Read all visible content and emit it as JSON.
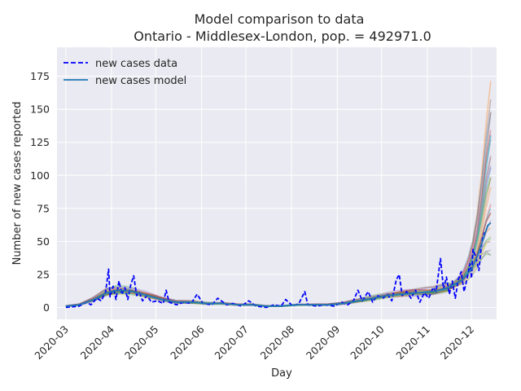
{
  "chart_data": {
    "type": "line",
    "title": "Model comparison to data",
    "subtitle": "Ontario - Middlesex-London, pop. = 492971.0",
    "xlabel": "Day",
    "ylabel": "Number of new cases reported",
    "xlim": [
      "2020-02-24",
      "2020-12-18"
    ],
    "ylim": [
      -9,
      197
    ],
    "grid": true,
    "legend_position": "top-left",
    "x_tick_labels": [
      "2020-03",
      "2020-04",
      "2020-05",
      "2020-06",
      "2020-07",
      "2020-08",
      "2020-09",
      "2020-10",
      "2020-11",
      "2020-12"
    ],
    "y_ticks": [
      0,
      25,
      50,
      75,
      100,
      125,
      150,
      175
    ],
    "series": [
      {
        "name": "new cases data",
        "style": "dashed",
        "color": "#0000ff",
        "points": [
          [
            "2020-03-01",
            0
          ],
          [
            "2020-03-10",
            1
          ],
          [
            "2020-03-15",
            4
          ],
          [
            "2020-03-18",
            2
          ],
          [
            "2020-03-22",
            7
          ],
          [
            "2020-03-25",
            5
          ],
          [
            "2020-03-28",
            12
          ],
          [
            "2020-03-30",
            29
          ],
          [
            "2020-03-31",
            8
          ],
          [
            "2020-04-02",
            16
          ],
          [
            "2020-04-04",
            6
          ],
          [
            "2020-04-06",
            20
          ],
          [
            "2020-04-08",
            10
          ],
          [
            "2020-04-10",
            15
          ],
          [
            "2020-04-12",
            6
          ],
          [
            "2020-04-14",
            17
          ],
          [
            "2020-04-16",
            24
          ],
          [
            "2020-04-18",
            9
          ],
          [
            "2020-04-20",
            11
          ],
          [
            "2020-04-22",
            5
          ],
          [
            "2020-04-25",
            9
          ],
          [
            "2020-04-28",
            4
          ],
          [
            "2020-05-02",
            5
          ],
          [
            "2020-05-06",
            3
          ],
          [
            "2020-05-08",
            13
          ],
          [
            "2020-05-10",
            4
          ],
          [
            "2020-05-15",
            2
          ],
          [
            "2020-05-20",
            4
          ],
          [
            "2020-05-25",
            3
          ],
          [
            "2020-05-29",
            10
          ],
          [
            "2020-06-02",
            3
          ],
          [
            "2020-06-08",
            2
          ],
          [
            "2020-06-12",
            7
          ],
          [
            "2020-06-18",
            2
          ],
          [
            "2020-06-22",
            3
          ],
          [
            "2020-06-28",
            1
          ],
          [
            "2020-07-03",
            5
          ],
          [
            "2020-07-08",
            1
          ],
          [
            "2020-07-15",
            0
          ],
          [
            "2020-07-20",
            2
          ],
          [
            "2020-07-25",
            1
          ],
          [
            "2020-07-28",
            6
          ],
          [
            "2020-08-02",
            1
          ],
          [
            "2020-08-06",
            3
          ],
          [
            "2020-08-10",
            12
          ],
          [
            "2020-08-12",
            2
          ],
          [
            "2020-08-18",
            1
          ],
          [
            "2020-08-24",
            2
          ],
          [
            "2020-08-30",
            1
          ],
          [
            "2020-09-04",
            4
          ],
          [
            "2020-09-08",
            2
          ],
          [
            "2020-09-12",
            5
          ],
          [
            "2020-09-15",
            13
          ],
          [
            "2020-09-18",
            5
          ],
          [
            "2020-09-22",
            12
          ],
          [
            "2020-09-25",
            4
          ],
          [
            "2020-09-28",
            9
          ],
          [
            "2020-10-02",
            7
          ],
          [
            "2020-10-05",
            10
          ],
          [
            "2020-10-08",
            5
          ],
          [
            "2020-10-11",
            21
          ],
          [
            "2020-10-13",
            25
          ],
          [
            "2020-10-15",
            9
          ],
          [
            "2020-10-18",
            12
          ],
          [
            "2020-10-21",
            7
          ],
          [
            "2020-10-24",
            13
          ],
          [
            "2020-10-27",
            4
          ],
          [
            "2020-10-30",
            11
          ],
          [
            "2020-11-02",
            7
          ],
          [
            "2020-11-05",
            15
          ],
          [
            "2020-11-07",
            12
          ],
          [
            "2020-11-10",
            37
          ],
          [
            "2020-11-12",
            14
          ],
          [
            "2020-11-14",
            23
          ],
          [
            "2020-11-16",
            10
          ],
          [
            "2020-11-18",
            20
          ],
          [
            "2020-11-20",
            7
          ],
          [
            "2020-11-22",
            21
          ],
          [
            "2020-11-24",
            27
          ],
          [
            "2020-11-26",
            12
          ],
          [
            "2020-11-28",
            22
          ],
          [
            "2020-11-30",
            33
          ],
          [
            "2020-12-01",
            22
          ],
          [
            "2020-12-02",
            44
          ],
          [
            "2020-12-04",
            38
          ],
          [
            "2020-12-06",
            28
          ],
          [
            "2020-12-08",
            50
          ],
          [
            "2020-12-10",
            57
          ]
        ]
      },
      {
        "name": "new cases model",
        "style": "solid",
        "color": "#1f77b4",
        "points": [
          [
            "2020-03-01",
            1
          ],
          [
            "2020-03-10",
            2
          ],
          [
            "2020-03-20",
            6
          ],
          [
            "2020-03-28",
            11
          ],
          [
            "2020-04-05",
            13
          ],
          [
            "2020-04-15",
            12
          ],
          [
            "2020-04-25",
            9
          ],
          [
            "2020-05-05",
            6
          ],
          [
            "2020-05-15",
            4
          ],
          [
            "2020-05-25",
            4
          ],
          [
            "2020-06-05",
            3
          ],
          [
            "2020-06-15",
            3
          ],
          [
            "2020-06-25",
            2
          ],
          [
            "2020-07-05",
            2
          ],
          [
            "2020-07-15",
            1
          ],
          [
            "2020-07-25",
            1
          ],
          [
            "2020-08-05",
            2
          ],
          [
            "2020-08-15",
            2
          ],
          [
            "2020-08-25",
            2
          ],
          [
            "2020-09-05",
            3
          ],
          [
            "2020-09-15",
            5
          ],
          [
            "2020-09-25",
            7
          ],
          [
            "2020-10-05",
            9
          ],
          [
            "2020-10-15",
            10
          ],
          [
            "2020-10-25",
            11
          ],
          [
            "2020-11-05",
            12
          ],
          [
            "2020-11-15",
            15
          ],
          [
            "2020-11-25",
            21
          ],
          [
            "2020-12-01",
            29
          ],
          [
            "2020-12-05",
            39
          ],
          [
            "2020-12-09",
            52
          ],
          [
            "2020-12-12",
            62
          ],
          [
            "2020-12-14",
            64
          ]
        ]
      }
    ]
  }
}
